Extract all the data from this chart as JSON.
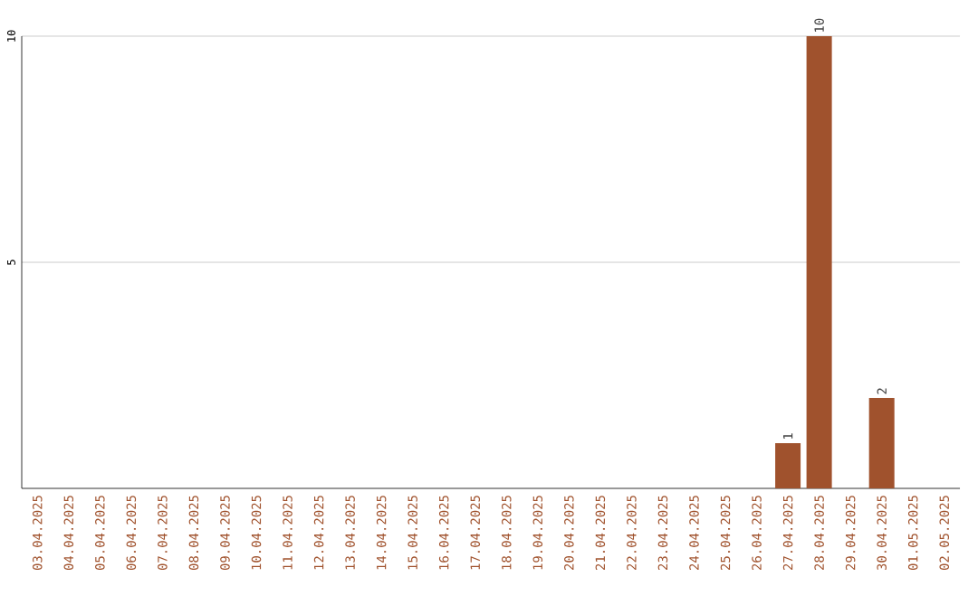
{
  "chart_data": {
    "type": "bar",
    "categories": [
      "03.04.2025",
      "04.04.2025",
      "05.04.2025",
      "06.04.2025",
      "07.04.2025",
      "08.04.2025",
      "09.04.2025",
      "10.04.2025",
      "11.04.2025",
      "12.04.2025",
      "13.04.2025",
      "14.04.2025",
      "15.04.2025",
      "16.04.2025",
      "17.04.2025",
      "18.04.2025",
      "19.04.2025",
      "20.04.2025",
      "21.04.2025",
      "22.04.2025",
      "23.04.2025",
      "24.04.2025",
      "25.04.2025",
      "26.04.2025",
      "27.04.2025",
      "28.04.2025",
      "29.04.2025",
      "30.04.2025",
      "01.05.2025",
      "02.05.2025"
    ],
    "values": [
      0,
      0,
      0,
      0,
      0,
      0,
      0,
      0,
      0,
      0,
      0,
      0,
      0,
      0,
      0,
      0,
      0,
      0,
      0,
      0,
      0,
      0,
      0,
      0,
      1,
      10,
      0,
      2,
      0,
      0
    ],
    "value_labels": [
      null,
      null,
      null,
      null,
      null,
      null,
      null,
      null,
      null,
      null,
      null,
      null,
      null,
      null,
      null,
      null,
      null,
      null,
      null,
      null,
      null,
      null,
      null,
      null,
      "1",
      "10",
      null,
      "2",
      null,
      null
    ],
    "color": "#a0522d",
    "ylim": [
      0,
      10
    ],
    "yticks": [
      5,
      10
    ],
    "grid": "y"
  }
}
